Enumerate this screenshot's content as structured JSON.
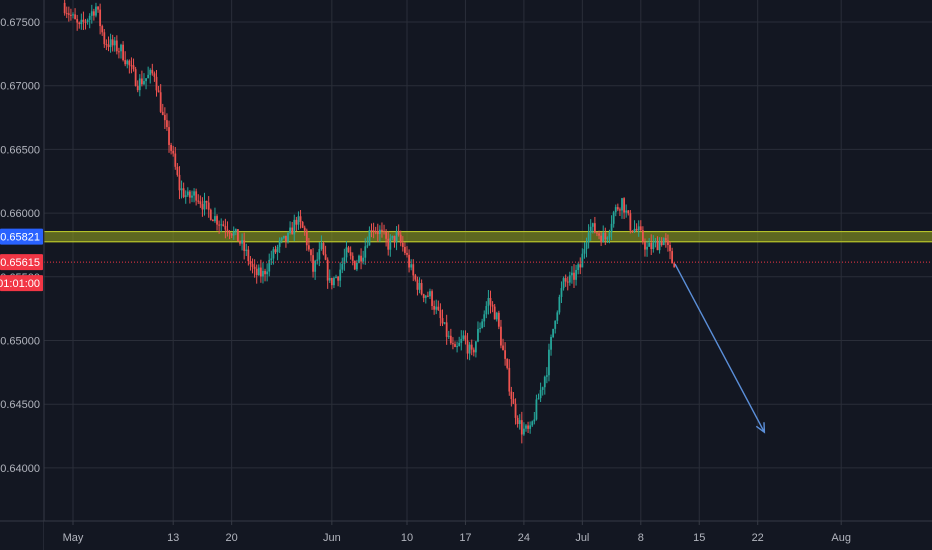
{
  "chart_data": {
    "type": "candlestick",
    "y_ticks": [
      "0.67500",
      "0.67000",
      "0.66500",
      "0.66000",
      "0.65500",
      "0.65000",
      "0.64500",
      "0.64000"
    ],
    "y_tick_values": [
      0.675,
      0.67,
      0.665,
      0.66,
      0.655,
      0.65,
      0.645,
      0.64
    ],
    "ylim": [
      0.6339,
      0.6763
    ],
    "x_ticks": [
      {
        "label": "May",
        "day": 0
      },
      {
        "label": "13",
        "day": 12
      },
      {
        "label": "20",
        "day": 19
      },
      {
        "label": "Jun",
        "day": 31
      },
      {
        "label": "10",
        "day": 40
      },
      {
        "label": "17",
        "day": 47
      },
      {
        "label": "24",
        "day": 54
      },
      {
        "label": "Jul",
        "day": 61
      },
      {
        "label": "8",
        "day": 68
      },
      {
        "label": "15",
        "day": 75
      },
      {
        "label": "22",
        "day": 82
      },
      {
        "label": "Aug",
        "day": 92
      }
    ],
    "price_path": [
      [
        -1,
        0.6765
      ],
      [
        1,
        0.6745
      ],
      [
        3,
        0.6762
      ],
      [
        4,
        0.6735
      ],
      [
        6,
        0.6728
      ],
      [
        8,
        0.6702
      ],
      [
        10,
        0.671
      ],
      [
        11,
        0.6675
      ],
      [
        12,
        0.665
      ],
      [
        13,
        0.662
      ],
      [
        14,
        0.6612
      ],
      [
        15,
        0.6615
      ],
      [
        16,
        0.6605
      ],
      [
        17,
        0.6598
      ],
      [
        18,
        0.6592
      ],
      [
        19,
        0.6588
      ],
      [
        20,
        0.658
      ],
      [
        21,
        0.6568
      ],
      [
        22,
        0.6552
      ],
      [
        23,
        0.6552
      ],
      [
        24,
        0.6565
      ],
      [
        25,
        0.6575
      ],
      [
        26,
        0.658
      ],
      [
        27,
        0.6595
      ],
      [
        28,
        0.6585
      ],
      [
        29,
        0.6555
      ],
      [
        30,
        0.6572
      ],
      [
        31,
        0.6545
      ],
      [
        32,
        0.6552
      ],
      [
        33,
        0.6568
      ],
      [
        34,
        0.656
      ],
      [
        35,
        0.657
      ],
      [
        36,
        0.659
      ],
      [
        37,
        0.6585
      ],
      [
        38,
        0.6575
      ],
      [
        39,
        0.6582
      ],
      [
        40,
        0.657
      ],
      [
        41,
        0.655
      ],
      [
        42,
        0.6538
      ],
      [
        43,
        0.6535
      ],
      [
        44,
        0.652
      ],
      [
        45,
        0.6505
      ],
      [
        46,
        0.649
      ],
      [
        47,
        0.6502
      ],
      [
        48,
        0.6488
      ],
      [
        49,
        0.6512
      ],
      [
        50,
        0.6532
      ],
      [
        51,
        0.6518
      ],
      [
        52,
        0.6482
      ],
      [
        53,
        0.6448
      ],
      [
        54,
        0.643
      ],
      [
        55,
        0.6428
      ],
      [
        56,
        0.6455
      ],
      [
        57,
        0.6478
      ],
      [
        58,
        0.652
      ],
      [
        59,
        0.6545
      ],
      [
        60,
        0.6548
      ],
      [
        61,
        0.6558
      ],
      [
        62,
        0.659
      ],
      [
        63,
        0.6585
      ],
      [
        64,
        0.658
      ],
      [
        65,
        0.66
      ],
      [
        66,
        0.661
      ],
      [
        67,
        0.659
      ],
      [
        68,
        0.6585
      ],
      [
        69,
        0.6572
      ],
      [
        70,
        0.6575
      ],
      [
        71,
        0.658
      ],
      [
        72,
        0.6562
      ]
    ],
    "resistance_zone": {
      "from": 0.65775,
      "to": 0.65855
    },
    "horizontal_line": {
      "price": 0.65615
    },
    "price_labels": [
      {
        "text": "0.65821",
        "color": "#2962ff"
      },
      {
        "text": "0.65615",
        "color": "#f23645"
      },
      {
        "text": "01:01:00",
        "color": "#f23645"
      }
    ],
    "arrow": {
      "from": [
        72.1,
        0.656
      ],
      "to": [
        82.8,
        0.6428
      ]
    },
    "colors": {
      "background": "#131722",
      "grid": "#2a2e39",
      "up": "#26a69a",
      "down": "#ef5350",
      "zone": "#8a9a1e",
      "arrow": "#5b8fd9",
      "axis_text": "#b2b5be"
    }
  }
}
